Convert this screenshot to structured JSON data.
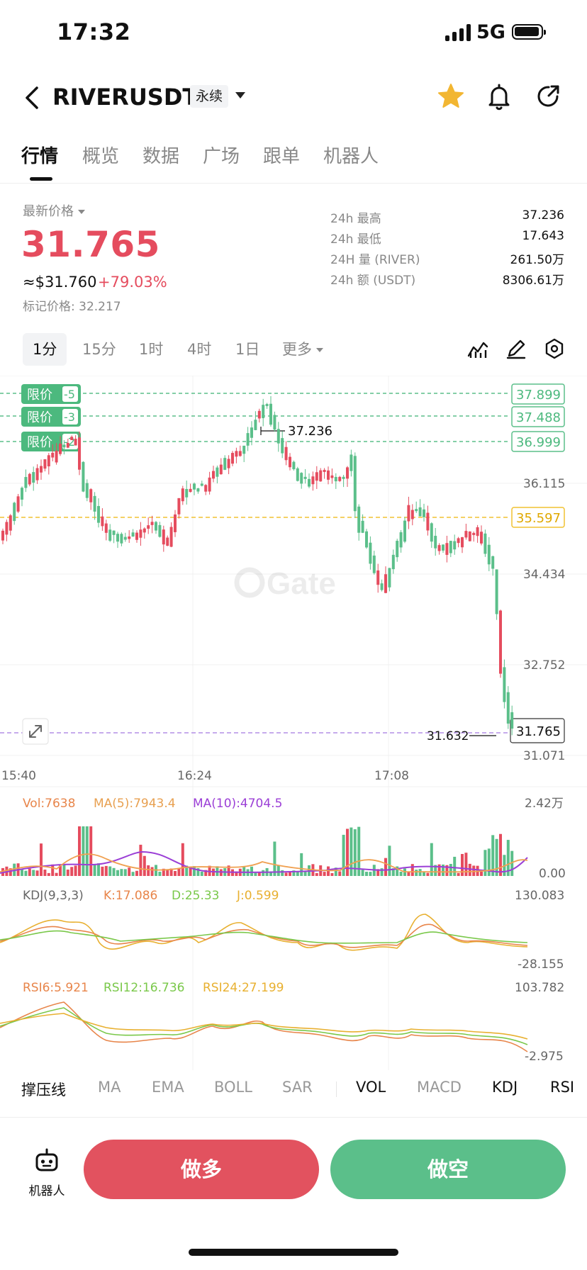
{
  "status_bar": {
    "time": "17:32",
    "network": "5G"
  },
  "header": {
    "symbol": "RIVERUSDT",
    "contract_tag": "永续"
  },
  "tabs": [
    {
      "label": "行情",
      "active": true
    },
    {
      "label": "概览"
    },
    {
      "label": "数据"
    },
    {
      "label": "广场"
    },
    {
      "label": "跟单"
    },
    {
      "label": "机器人"
    }
  ],
  "price": {
    "label": "最新价格",
    "last": "31.765",
    "usd": "≈$31.760",
    "change": "+79.03%",
    "mark_price": "标记价格: 32.217"
  },
  "stats": [
    {
      "label": "24h  最高",
      "value": "37.236"
    },
    {
      "label": "24h  最低",
      "value": "17.643"
    },
    {
      "label": "24H  量 (RIVER)",
      "value": "261.50万"
    },
    {
      "label": "24h  额 (USDT)",
      "value": "8306.61万"
    }
  ],
  "timeframes": [
    {
      "label": "1分",
      "active": true
    },
    {
      "label": "15分"
    },
    {
      "label": "1时"
    },
    {
      "label": "4时"
    },
    {
      "label": "1日"
    },
    {
      "label": "更多"
    }
  ],
  "chart": {
    "orders": [
      {
        "tag": "限价",
        "count": "-5",
        "price": "37.899"
      },
      {
        "tag": "限价",
        "count": "-3",
        "price": "37.488"
      },
      {
        "tag": "限价",
        "count": "-2",
        "price": "36.999"
      }
    ],
    "high_marker": "37.236",
    "low_marker": "31.632",
    "y_ticks": [
      "36.115",
      "34.434",
      "32.752",
      "31.071"
    ],
    "ref_price": "35.597",
    "current_price": "31.765",
    "x_ticks": [
      "15:40",
      "16:24",
      "17:08"
    ],
    "watermark": "Gate",
    "colors": {
      "up": "#e54c5e",
      "down": "#5bbf8a",
      "ma5": "#f0a050",
      "ma10": "#9b3fd6"
    }
  },
  "volume": {
    "vol": "Vol:7638",
    "ma5": "MA(5):7943.4",
    "ma10": "MA(10):4704.5",
    "max": "2.42万",
    "min": "0.00"
  },
  "kdj": {
    "title": "KDJ(9,3,3)",
    "k": "K:17.086",
    "d": "D:25.33",
    "j": "J:0.599",
    "max": "130.083",
    "min": "-28.155"
  },
  "rsi": {
    "r6": "RSI6:5.921",
    "r12": "RSI12:16.736",
    "r24": "RSI24:27.199",
    "max": "103.782",
    "min": "-2.975"
  },
  "indicators": [
    {
      "label": "撑压线",
      "on": true
    },
    {
      "label": "MA"
    },
    {
      "label": "EMA"
    },
    {
      "label": "BOLL"
    },
    {
      "label": "SAR"
    },
    {
      "label": "VOL",
      "on": true
    },
    {
      "label": "MACD"
    },
    {
      "label": "KDJ",
      "on": true
    },
    {
      "label": "RSI",
      "on": true
    }
  ],
  "bottom": {
    "robot": "机器人",
    "long": "做多",
    "short": "做空"
  }
}
